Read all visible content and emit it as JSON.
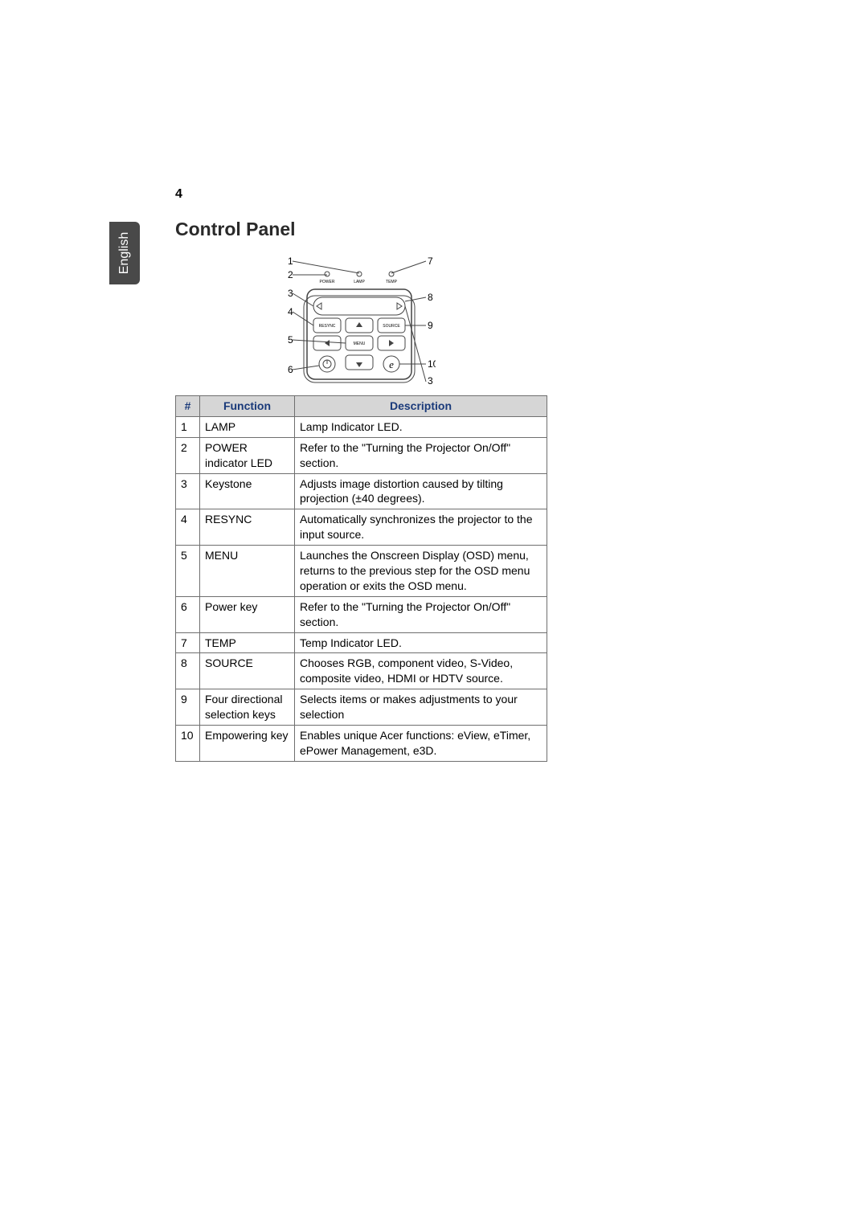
{
  "page_number": "4",
  "language_tab": "English",
  "section_title": "Control Panel",
  "table": {
    "headers": {
      "num": "#",
      "func": "Function",
      "desc": "Description"
    },
    "rows": [
      {
        "num": "1",
        "func": "LAMP",
        "desc": "Lamp Indicator LED."
      },
      {
        "num": "2",
        "func": "POWER indicator LED",
        "desc": "Refer to the \"Turning the Projector On/Off\" section."
      },
      {
        "num": "3",
        "func": "Keystone",
        "desc": "Adjusts image distortion caused by tilting projection (±40 degrees)."
      },
      {
        "num": "4",
        "func": "RESYNC",
        "desc": "Automatically synchronizes the projector to the input source."
      },
      {
        "num": "5",
        "func": "MENU",
        "desc": "Launches the Onscreen Display (OSD) menu, returns to the previous step for the OSD menu operation or exits the OSD menu."
      },
      {
        "num": "6",
        "func": "Power key",
        "desc": "Refer to the \"Turning the Projector On/Off\" section."
      },
      {
        "num": "7",
        "func": "TEMP",
        "desc": "Temp Indicator LED."
      },
      {
        "num": "8",
        "func": "SOURCE",
        "desc": "Chooses RGB, component video, S-Video, composite video, HDMI or HDTV source."
      },
      {
        "num": "9",
        "func": "Four directional selection keys",
        "desc": "Selects items or makes adjustments to your selection"
      },
      {
        "num": "10",
        "func": "Empowering key",
        "desc": "Enables unique Acer functions: eView, eTimer, ePower Management, e3D."
      }
    ]
  },
  "diagram": {
    "callout_left": [
      "1",
      "2",
      "3",
      "4",
      "5",
      "6"
    ],
    "callout_right": [
      "7",
      "8",
      "9",
      "10",
      "3"
    ],
    "panel_labels": {
      "power": "POWER",
      "lamp": "LAMP",
      "temp": "TEMP",
      "resync": "RESYNC",
      "source": "SOURCE",
      "menu": "MENU"
    },
    "colors": {
      "stroke": "#444444",
      "text": "#000000",
      "panel_fill": "#ffffff"
    }
  }
}
